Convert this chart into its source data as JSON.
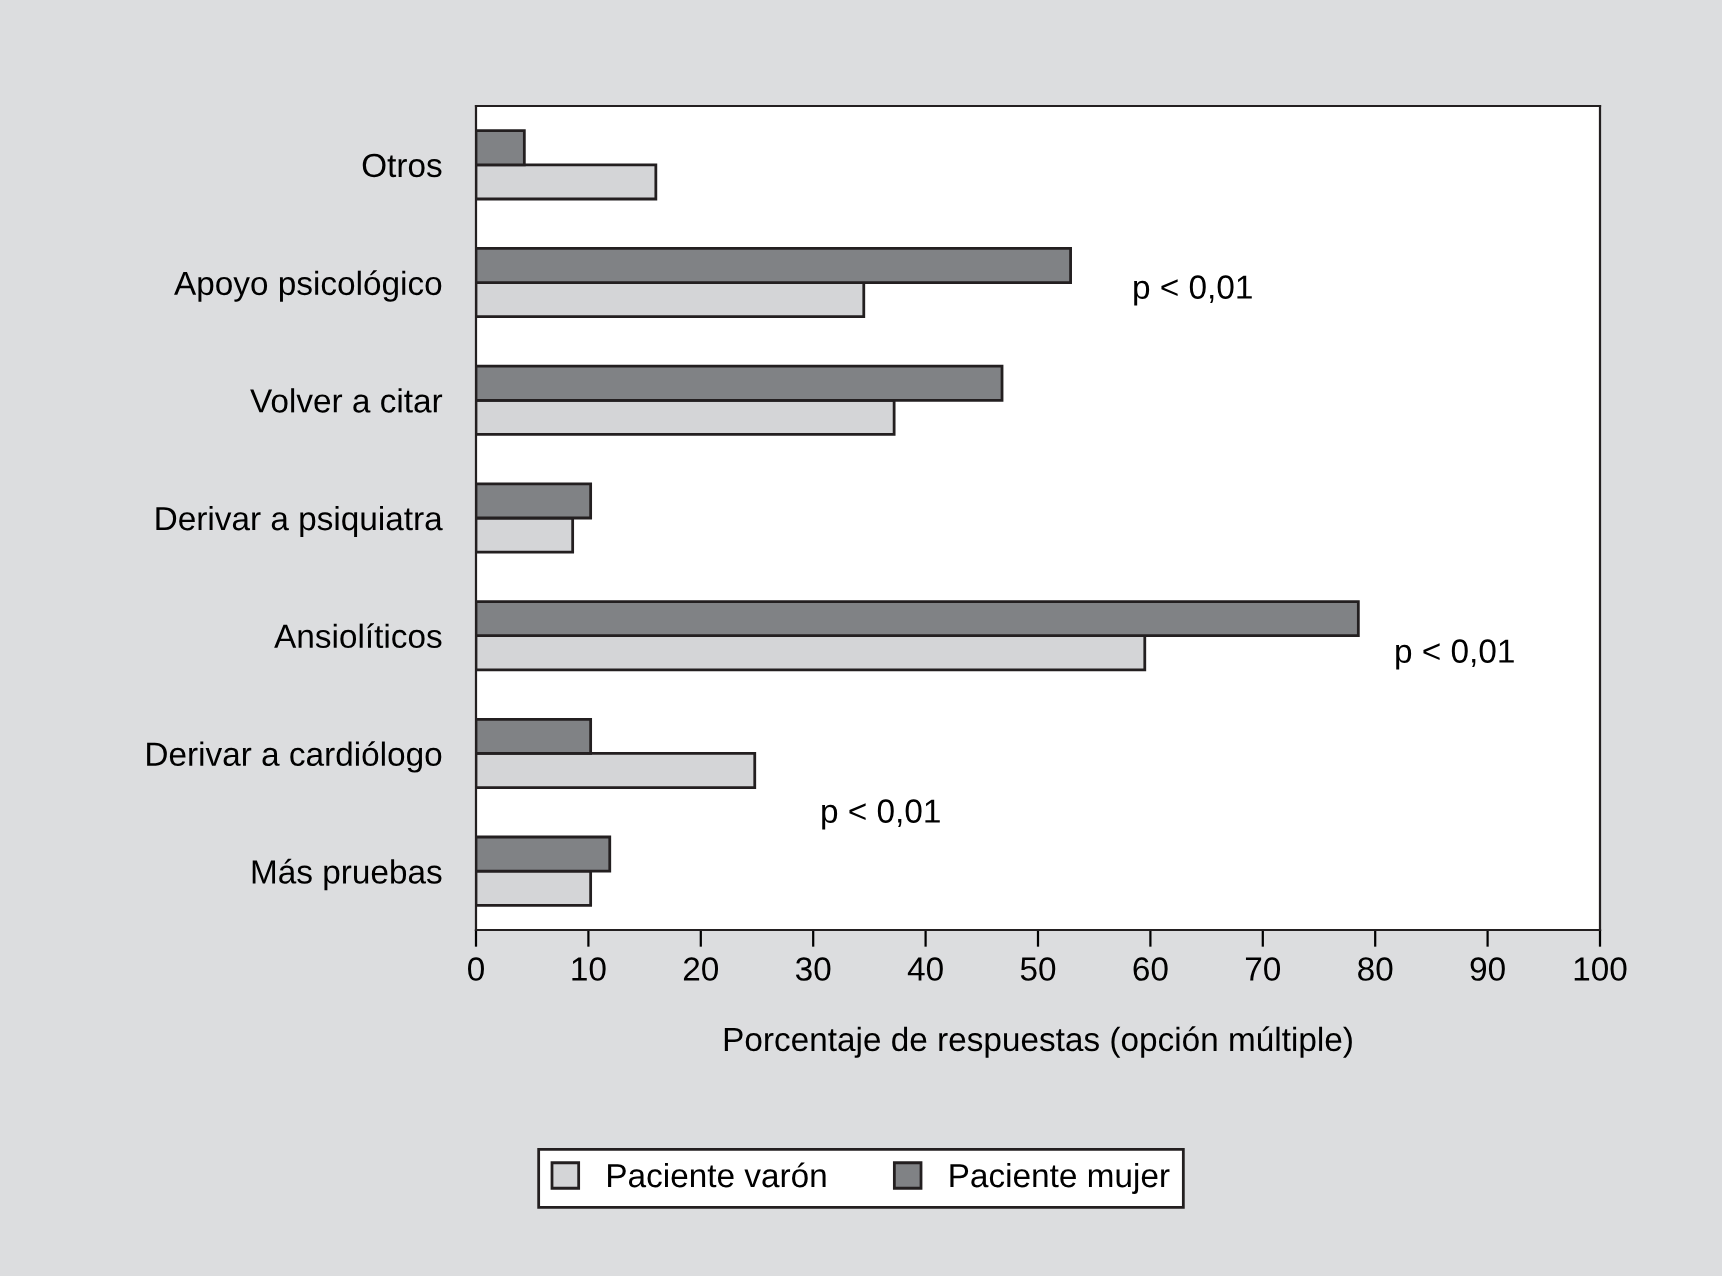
{
  "chart_data": {
    "type": "bar",
    "orientation": "horizontal",
    "xlabel": "Porcentaje de respuestas (opción múltiple)",
    "categories": [
      "Otros",
      "Apoyo psicológico",
      "Volver a citar",
      "Derivar a psiquiatra",
      "Ansiolíticos",
      "Derivar a cardiólogo",
      "Más pruebas"
    ],
    "series": [
      {
        "name": "Paciente varón",
        "color": "#d4d5d7",
        "values": [
          16.0,
          34.5,
          37.2,
          8.6,
          59.5,
          24.8,
          10.2
        ]
      },
      {
        "name": "Paciente mujer",
        "color": "#808285",
        "values": [
          4.3,
          52.9,
          46.8,
          10.2,
          78.5,
          10.2,
          11.9
        ]
      }
    ],
    "xlim": [
      0,
      100
    ],
    "xticks": [
      0,
      10,
      20,
      30,
      40,
      50,
      60,
      70,
      80,
      90,
      100
    ],
    "annotations": [
      "p < 0,01",
      "p < 0,01",
      "p < 0,01"
    ],
    "legend": "bottom",
    "grid": false
  }
}
